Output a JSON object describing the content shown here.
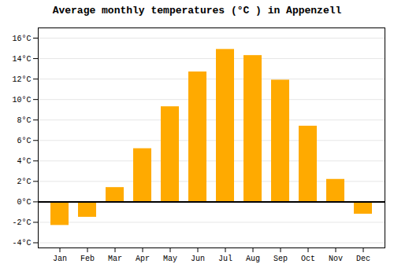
{
  "chart_data": {
    "type": "bar",
    "title": "Average monthly temperatures (°C ) in Appenzell",
    "categories": [
      "Jan",
      "Feb",
      "Mar",
      "Apr",
      "May",
      "Jun",
      "Jul",
      "Aug",
      "Sep",
      "Oct",
      "Nov",
      "Dec"
    ],
    "values": [
      -2.3,
      -1.5,
      1.4,
      5.2,
      9.3,
      12.7,
      14.9,
      14.3,
      11.9,
      7.4,
      2.2,
      -1.2
    ],
    "color": "#FFAA00",
    "ylim": [
      -4.5,
      17
    ],
    "yticks": [
      {
        "value": -4,
        "label": "-4°C"
      },
      {
        "value": -2,
        "label": "-2°C"
      },
      {
        "value": 0,
        "label": "0°C"
      },
      {
        "value": 2,
        "label": "2°C"
      },
      {
        "value": 4,
        "label": "4°C"
      },
      {
        "value": 6,
        "label": "6°C"
      },
      {
        "value": 8,
        "label": "8°C"
      },
      {
        "value": 10,
        "label": "10°C"
      },
      {
        "value": 12,
        "label": "12°C"
      },
      {
        "value": 14,
        "label": "14°C"
      },
      {
        "value": 16,
        "label": "16°C"
      }
    ],
    "grid": true
  }
}
